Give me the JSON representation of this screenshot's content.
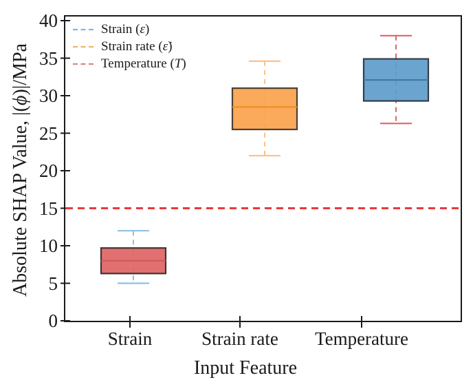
{
  "figure": {
    "background": "#ffffff",
    "text_color": "#1a1a1a",
    "spine_color": "#1a1a1a"
  },
  "chart_data": {
    "type": "box",
    "title": "",
    "xlabel": "Input Feature",
    "ylabel_prefix": "Absolute SHAP Value, |(",
    "ylabel_symbol": "ϕ",
    "ylabel_suffix": ")|/MPa",
    "ylim": [
      0,
      40.6
    ],
    "yticks": [
      0,
      5,
      10,
      15,
      20,
      25,
      30,
      35,
      40
    ],
    "grid": false,
    "legend_position": "upper left",
    "categories": [
      "Strain",
      "Strain rate",
      "Temperature"
    ],
    "legend": [
      {
        "prefix": "Strain (",
        "symbol": "ε",
        "suffix": ")",
        "color": "#85b5dc"
      },
      {
        "prefix": "Strain rate (",
        "symbol": "ε̇",
        "suffix": ")",
        "color": "#f5b266"
      },
      {
        "prefix": "Temperature (",
        "symbol": "T",
        "suffix": ")",
        "color": "#d98880"
      }
    ],
    "boxes": [
      {
        "label": "Strain",
        "min": 5.0,
        "q1": 6.3,
        "median": 8.0,
        "q3": 9.7,
        "max": 12.0,
        "face": "#e06565",
        "edge": "#3d3434",
        "median_color": "#c95c5c",
        "whisker": "#8fc1e0"
      },
      {
        "label": "Strain rate",
        "min": 22.0,
        "q1": 25.5,
        "median": 28.5,
        "q3": 31.0,
        "max": 34.6,
        "face": "#fba24e",
        "edge": "#4a4036",
        "median_color": "#f08f28",
        "whisker": "#fdc088"
      },
      {
        "label": "Temperature",
        "min": 26.3,
        "q1": 29.3,
        "median": 32.1,
        "q3": 34.9,
        "max": 38.0,
        "face": "#5f9dcb",
        "edge": "#333c48",
        "median_color": "#44789f",
        "whisker": "#dd6464"
      }
    ],
    "reference_line": {
      "value": 15,
      "color": "#e8393b",
      "style": "dashed"
    }
  }
}
